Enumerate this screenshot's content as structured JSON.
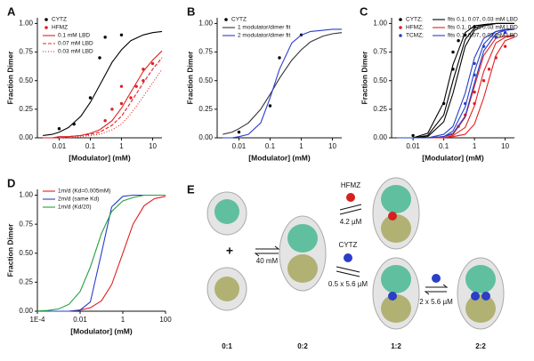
{
  "chart_data": [
    {
      "type": "line",
      "panel": "A",
      "xlabel": "[Modulator] (mM)",
      "ylabel": "Fraction Dimer",
      "xlog": true,
      "xlim": [
        0.002,
        20
      ],
      "xticks": [
        0.01,
        0.1,
        1,
        10
      ],
      "ylim": [
        0,
        1.05
      ],
      "yticks": [
        {
          "value": 0,
          "label": "0.00"
        },
        {
          "value": 0.25,
          "label": "0.25"
        },
        {
          "value": 0.5,
          "label": "0.50"
        },
        {
          "value": 0.75,
          "label": "0.75"
        },
        {
          "value": 1,
          "label": "1.00"
        }
      ],
      "legend": "upper left",
      "legend_columns": 1,
      "series": [
        {
          "name": "CYTZ",
          "mode": "markers",
          "color": "#000000",
          "x": [
            0.01,
            0.03,
            0.1,
            0.2,
            0.3,
            1
          ],
          "values": [
            0.08,
            0.12,
            0.35,
            0.7,
            0.88,
            0.9
          ]
        },
        {
          "name": "HFMZ",
          "mode": "markers",
          "color": "#e02020",
          "x": [
            0.3,
            0.5,
            1,
            1,
            2,
            3,
            5,
            5,
            10
          ],
          "values": [
            0.15,
            0.25,
            0.3,
            0.45,
            0.35,
            0.45,
            0.5,
            0.6,
            0.65
          ]
        },
        {
          "name": "0.1 mM LBD",
          "mode": "line",
          "style": "solid",
          "color": "#e02020",
          "x": [
            0.003,
            0.006,
            0.01,
            0.02,
            0.05,
            0.1,
            0.2,
            0.5,
            1,
            2,
            5,
            10,
            20
          ],
          "values": [
            0,
            0,
            0.01,
            0.01,
            0.02,
            0.04,
            0.07,
            0.15,
            0.26,
            0.4,
            0.58,
            0.68,
            0.76
          ]
        },
        {
          "name": "0.07 mM LBD",
          "mode": "line",
          "style": "dashed",
          "color": "#e02020",
          "x": [
            0.003,
            0.006,
            0.01,
            0.02,
            0.05,
            0.1,
            0.2,
            0.5,
            1,
            2,
            5,
            10,
            20
          ],
          "values": [
            0,
            0,
            0,
            0.01,
            0.02,
            0.03,
            0.05,
            0.11,
            0.19,
            0.31,
            0.48,
            0.6,
            0.7
          ]
        },
        {
          "name": "0.03 mM LBD",
          "mode": "line",
          "style": "dotted",
          "color": "#e02020",
          "x": [
            0.003,
            0.006,
            0.01,
            0.02,
            0.05,
            0.1,
            0.2,
            0.5,
            1,
            2,
            5,
            10,
            20
          ],
          "values": [
            0,
            0,
            0,
            0,
            0.01,
            0.02,
            0.03,
            0.07,
            0.12,
            0.21,
            0.36,
            0.48,
            0.6
          ]
        },
        {
          "mode": "line",
          "style": "solid",
          "color": "#000000",
          "x": [
            0.003,
            0.006,
            0.01,
            0.02,
            0.05,
            0.1,
            0.2,
            0.5,
            1,
            2,
            5,
            10,
            20
          ],
          "values": [
            0.02,
            0.03,
            0.05,
            0.09,
            0.19,
            0.31,
            0.46,
            0.66,
            0.77,
            0.85,
            0.9,
            0.92,
            0.93
          ]
        }
      ]
    },
    {
      "type": "line",
      "panel": "B",
      "xlabel": "[Modulator] (mM)",
      "ylabel": "Fraction Dimer",
      "xlog": true,
      "xlim": [
        0.002,
        20
      ],
      "xticks": [
        0.01,
        0.1,
        1,
        10
      ],
      "ylim": [
        0,
        1.05
      ],
      "yticks": [
        {
          "value": 0,
          "label": "0.00"
        },
        {
          "value": 0.25,
          "label": "0.25"
        },
        {
          "value": 0.5,
          "label": "0.50"
        },
        {
          "value": 0.75,
          "label": "0.75"
        },
        {
          "value": 1,
          "label": "1.00"
        }
      ],
      "legend": "upper left",
      "legend_columns": 1,
      "series": [
        {
          "name": "CYTZ",
          "mode": "markers",
          "color": "#000000",
          "x": [
            0.01,
            0.1,
            0.2,
            1
          ],
          "values": [
            0.05,
            0.28,
            0.7,
            0.9
          ]
        },
        {
          "name": "1 modulator/dimer fit",
          "mode": "line",
          "style": "solid",
          "color": "#333333",
          "x": [
            0.003,
            0.006,
            0.01,
            0.02,
            0.05,
            0.1,
            0.2,
            0.5,
            1,
            2,
            5,
            10,
            20
          ],
          "values": [
            0.03,
            0.05,
            0.08,
            0.13,
            0.25,
            0.38,
            0.52,
            0.68,
            0.77,
            0.84,
            0.89,
            0.91,
            0.92
          ]
        },
        {
          "name": "2 modulator/dimer fit",
          "mode": "line",
          "style": "solid",
          "color": "#2a3ec8",
          "x": [
            0.003,
            0.006,
            0.01,
            0.02,
            0.05,
            0.1,
            0.2,
            0.5,
            1,
            2,
            5,
            10,
            20
          ],
          "values": [
            0,
            0,
            0.01,
            0.03,
            0.13,
            0.35,
            0.6,
            0.83,
            0.9,
            0.93,
            0.94,
            0.95,
            0.95
          ]
        }
      ]
    },
    {
      "type": "line",
      "panel": "C",
      "xlabel": "[Modulator] (mM)",
      "ylabel": "Fraction Dimer",
      "xlog": true,
      "xlim": [
        0.002,
        20
      ],
      "xticks": [
        0.01,
        0.1,
        1,
        10
      ],
      "ylim": [
        0,
        1.05
      ],
      "yticks": [
        {
          "value": 0,
          "label": "0.00"
        },
        {
          "value": 0.25,
          "label": "0.25"
        },
        {
          "value": 0.5,
          "label": "0.50"
        },
        {
          "value": 0.75,
          "label": "0.75"
        },
        {
          "value": 1,
          "label": "1.00"
        }
      ],
      "legend": "upper left",
      "legend_columns": 2,
      "series": [
        {
          "name": "CYTZ;",
          "mode": "markers",
          "color": "#000000",
          "x": [
            0.01,
            0.1,
            0.2,
            0.2,
            0.3,
            0.5,
            1
          ],
          "values": [
            0.02,
            0.3,
            0.6,
            0.75,
            0.85,
            0.9,
            0.97
          ]
        },
        {
          "name": "fits 0.1, 0.07, 0.03 mM LBD",
          "mode": "line",
          "style": "solid",
          "color": "#000000",
          "x": [
            0.003,
            0.01,
            0.03,
            0.1,
            0.2,
            0.5,
            1,
            2,
            5,
            10,
            20
          ],
          "values": [
            0,
            0,
            0.04,
            0.31,
            0.64,
            0.92,
            0.98,
            0.99,
            1,
            1,
            1
          ]
        },
        {
          "name": "HFMZ;",
          "mode": "markers",
          "color": "#e02020",
          "x": [
            0.3,
            0.5,
            1,
            1,
            2,
            3,
            5,
            10
          ],
          "values": [
            0.1,
            0.2,
            0.3,
            0.4,
            0.5,
            0.6,
            0.7,
            0.8
          ]
        },
        {
          "name": "fits 0.1, 0.07, 0.03 mM LBD",
          "mode": "line",
          "style": "solid",
          "color": "#e02020",
          "x": [
            0.003,
            0.01,
            0.03,
            0.1,
            0.2,
            0.5,
            1,
            2,
            5,
            10,
            20
          ],
          "values": [
            0,
            0,
            0,
            0.01,
            0.03,
            0.18,
            0.45,
            0.72,
            0.87,
            0.89,
            0.9
          ]
        },
        {
          "name": "TCMZ;",
          "mode": "markers",
          "color": "#2a3ec8",
          "x": [
            0.5,
            1,
            1,
            2,
            5,
            10
          ],
          "values": [
            0.3,
            0.55,
            0.65,
            0.8,
            0.88,
            0.92
          ]
        },
        {
          "name": "fits 0.1, 0.07, 0.03 mM LBD",
          "mode": "line",
          "style": "solid",
          "color": "#2a3ec8",
          "x": [
            0.003,
            0.01,
            0.03,
            0.1,
            0.2,
            0.5,
            1,
            2,
            5,
            10,
            20
          ],
          "values": [
            0,
            0,
            0,
            0.03,
            0.1,
            0.39,
            0.7,
            0.87,
            0.93,
            0.95,
            0.95
          ]
        },
        {
          "mode": "line",
          "style": "solid",
          "color": "#000000",
          "x": [
            0.003,
            0.01,
            0.03,
            0.1,
            0.2,
            0.5,
            1,
            2,
            5,
            10,
            20
          ],
          "values": [
            0,
            0,
            0.02,
            0.2,
            0.5,
            0.86,
            0.96,
            0.99,
            1,
            1,
            1
          ]
        },
        {
          "mode": "line",
          "style": "solid",
          "color": "#000000",
          "x": [
            0.003,
            0.01,
            0.03,
            0.1,
            0.2,
            0.5,
            1,
            2,
            5,
            10,
            20
          ],
          "values": [
            0,
            0,
            0.01,
            0.14,
            0.39,
            0.8,
            0.94,
            0.98,
            1,
            1,
            1
          ]
        },
        {
          "mode": "line",
          "style": "solid",
          "color": "#e02020",
          "x": [
            0.003,
            0.01,
            0.03,
            0.1,
            0.2,
            0.5,
            1,
            2,
            5,
            10,
            20
          ],
          "values": [
            0,
            0,
            0,
            0,
            0.02,
            0.09,
            0.28,
            0.58,
            0.83,
            0.88,
            0.89
          ]
        },
        {
          "mode": "line",
          "style": "solid",
          "color": "#e02020",
          "x": [
            0.003,
            0.01,
            0.03,
            0.1,
            0.2,
            0.5,
            1,
            2,
            5,
            10,
            20
          ],
          "values": [
            0,
            0,
            0,
            0,
            0.01,
            0.03,
            0.12,
            0.35,
            0.72,
            0.85,
            0.88
          ]
        },
        {
          "mode": "line",
          "style": "solid",
          "color": "#2a3ec8",
          "x": [
            0.003,
            0.01,
            0.03,
            0.1,
            0.2,
            0.5,
            1,
            2,
            5,
            10,
            20
          ],
          "values": [
            0,
            0,
            0,
            0.01,
            0.06,
            0.27,
            0.58,
            0.82,
            0.93,
            0.94,
            0.95
          ]
        },
        {
          "mode": "line",
          "style": "solid",
          "color": "#2a3ec8",
          "x": [
            0.003,
            0.01,
            0.03,
            0.1,
            0.2,
            0.5,
            1,
            2,
            5,
            10,
            20
          ],
          "values": [
            0,
            0,
            0,
            0.01,
            0.04,
            0.19,
            0.48,
            0.76,
            0.91,
            0.94,
            0.95
          ]
        }
      ]
    },
    {
      "type": "line",
      "panel": "D",
      "xlabel": "[Modulator] (mM)",
      "ylabel": "Fraction Dimer",
      "xlog": true,
      "xlim": [
        0.0001,
        100
      ],
      "xticks": [
        {
          "value": 0.0001,
          "label": "1E-4"
        },
        0.01,
        1,
        100
      ],
      "ylim": [
        0,
        1.05
      ],
      "yticks": [
        {
          "value": 0,
          "label": "0.00"
        },
        {
          "value": 0.25,
          "label": "0.25"
        },
        {
          "value": 0.5,
          "label": "0.50"
        },
        {
          "value": 0.75,
          "label": "0.75"
        },
        {
          "value": 1,
          "label": "1.00"
        }
      ],
      "legend": "upper left",
      "legend_columns": 1,
      "series": [
        {
          "name": "1m/d (Kd=0.005mM)",
          "mode": "line",
          "style": "solid",
          "color": "#e02020",
          "x": [
            0.0001,
            0.0003,
            0.001,
            0.003,
            0.01,
            0.03,
            0.1,
            0.3,
            1,
            3,
            10,
            30,
            100
          ],
          "values": [
            0,
            0,
            0,
            0,
            0.01,
            0.03,
            0.09,
            0.23,
            0.5,
            0.75,
            0.91,
            0.97,
            0.99
          ]
        },
        {
          "name": "2m/d (same Kd)",
          "mode": "line",
          "style": "solid",
          "color": "#2a3ec8",
          "x": [
            0.0001,
            0.0003,
            0.001,
            0.003,
            0.01,
            0.03,
            0.1,
            0.3,
            1,
            3,
            10,
            30,
            100
          ],
          "values": [
            0,
            0,
            0,
            0,
            0.01,
            0.08,
            0.5,
            0.9,
            0.99,
            1,
            1,
            1,
            1
          ]
        },
        {
          "name": "1m/d (Kd/20)",
          "mode": "line",
          "style": "solid",
          "color": "#20a040",
          "x": [
            0.0001,
            0.0003,
            0.001,
            0.003,
            0.01,
            0.03,
            0.1,
            0.3,
            1,
            3,
            10,
            30,
            100
          ],
          "values": [
            0.002,
            0.006,
            0.02,
            0.06,
            0.17,
            0.38,
            0.67,
            0.86,
            0.95,
            0.98,
            1,
            1,
            1
          ]
        }
      ]
    }
  ],
  "diagram": {
    "panel": "E",
    "plus": "+",
    "states": [
      "0:1",
      "0:2",
      "1:2",
      "2:2"
    ],
    "steps": {
      "dimerize": "40 mM",
      "hfmz": "HFMZ",
      "hfmz_k": "4.2 µM",
      "cytz": "CYTZ",
      "cytz_k": "0.5 x 5.6 µM",
      "second_k": "2 x 5.6 µM"
    }
  }
}
